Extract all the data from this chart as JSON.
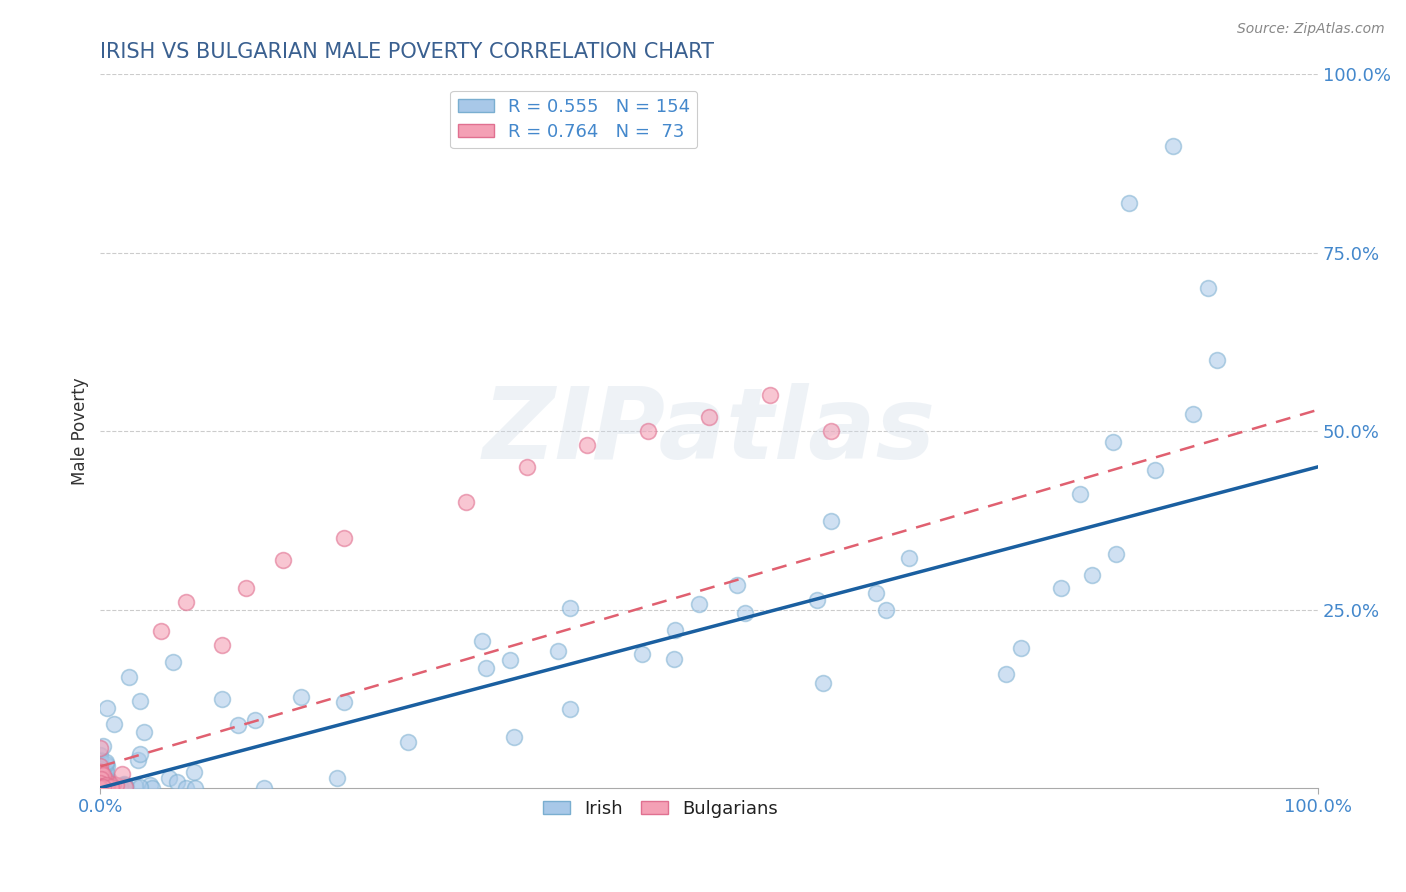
{
  "title": "IRISH VS BULGARIAN MALE POVERTY CORRELATION CHART",
  "source": "Source: ZipAtlas.com",
  "ylabel": "Male Poverty",
  "xlim": [
    0,
    1
  ],
  "ylim": [
    0,
    1
  ],
  "irish_color": "#a8c8e8",
  "irish_edge_color": "#7aaed0",
  "bulgarian_color": "#f4a0b5",
  "bulgarian_edge_color": "#e07090",
  "irish_line_color": "#1a5fa0",
  "bulgarian_line_color": "#e06070",
  "irish_dash_color": "#c8d8e8",
  "axis_color": "#4488cc",
  "title_color": "#3a6090",
  "R_irish": 0.555,
  "N_irish": 154,
  "R_bulgarian": 0.764,
  "N_bulgarian": 73,
  "seed": 42,
  "background_color": "#ffffff",
  "watermark": "ZIPatlas",
  "watermark_color": "#d0dce8"
}
